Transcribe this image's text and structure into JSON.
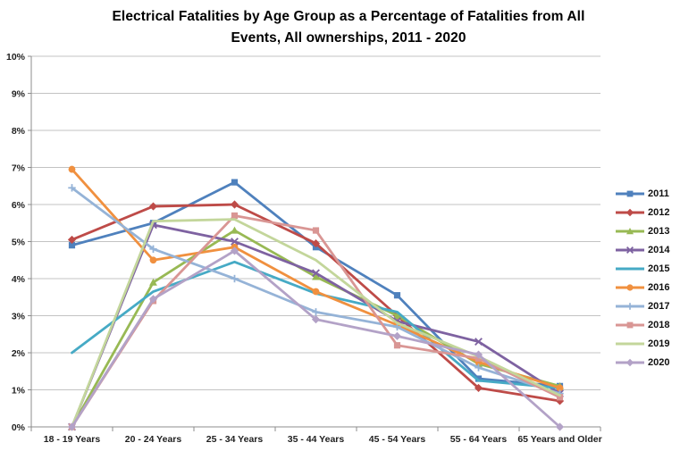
{
  "title": {
    "line1": "Electrical Fatalities by Age Group as a Percentage of Fatalities from All",
    "line2": "Events, All ownerships, 2011 - 2020"
  },
  "chart_data": {
    "type": "line",
    "title": "Electrical Fatalities by Age Group as a Percentage of Fatalities from All Events, All ownerships, 2011 - 2020",
    "categories": [
      "18 - 19 Years",
      "20 - 24 Years",
      "25 - 34 Years",
      "35 - 44 Years",
      "45 - 54 Years",
      "55 - 64 Years",
      "65 Years and Older"
    ],
    "y_ticks": [
      "0%",
      "1%",
      "2%",
      "3%",
      "4%",
      "5%",
      "6%",
      "7%",
      "8%",
      "9%",
      "10%"
    ],
    "ylim": [
      0,
      10
    ],
    "y_tick_step": 1,
    "grid": true,
    "legend_position": "right",
    "xlabel": "",
    "ylabel": "",
    "series": [
      {
        "name": "2011",
        "color": "#4F81BD",
        "marker": "square",
        "values": [
          4.9,
          5.5,
          6.6,
          4.85,
          3.55,
          1.3,
          1.1
        ]
      },
      {
        "name": "2012",
        "color": "#BE4B48",
        "marker": "diamond",
        "values": [
          5.05,
          5.95,
          6.0,
          4.95,
          3.0,
          1.05,
          0.7
        ]
      },
      {
        "name": "2013",
        "color": "#98B954",
        "marker": "triangle",
        "values": [
          0.0,
          3.9,
          5.3,
          4.05,
          3.0,
          1.7,
          1.1
        ]
      },
      {
        "name": "2014",
        "color": "#7E62A1",
        "marker": "x",
        "values": [
          0.0,
          5.45,
          5.0,
          4.15,
          2.85,
          2.3,
          0.9
        ]
      },
      {
        "name": "2015",
        "color": "#46AAC5",
        "marker": "none",
        "values": [
          2.0,
          3.65,
          4.45,
          3.6,
          3.1,
          1.25,
          1.05
        ]
      },
      {
        "name": "2016",
        "color": "#F0903F",
        "marker": "circle",
        "values": [
          6.95,
          4.5,
          4.85,
          3.65,
          2.75,
          1.75,
          1.05
        ]
      },
      {
        "name": "2017",
        "color": "#95B3D7",
        "marker": "plus",
        "values": [
          6.45,
          4.8,
          4.0,
          3.1,
          2.7,
          1.6,
          0.9
        ]
      },
      {
        "name": "2018",
        "color": "#D99694",
        "marker": "square",
        "values": [
          0.0,
          3.4,
          5.7,
          5.3,
          2.2,
          1.85,
          0.8
        ]
      },
      {
        "name": "2019",
        "color": "#C3D69B",
        "marker": "none",
        "values": [
          0.0,
          5.55,
          5.6,
          4.5,
          2.8,
          1.9,
          0.85
        ]
      },
      {
        "name": "2020",
        "color": "#B3A2C7",
        "marker": "diamond",
        "values": [
          0.0,
          3.45,
          4.75,
          2.9,
          2.45,
          1.95,
          0.0
        ]
      }
    ]
  },
  "colors": {
    "gridline": "#C3C3C3",
    "axis": "#8C8C8C",
    "tick_text": "#1F1F1F"
  }
}
